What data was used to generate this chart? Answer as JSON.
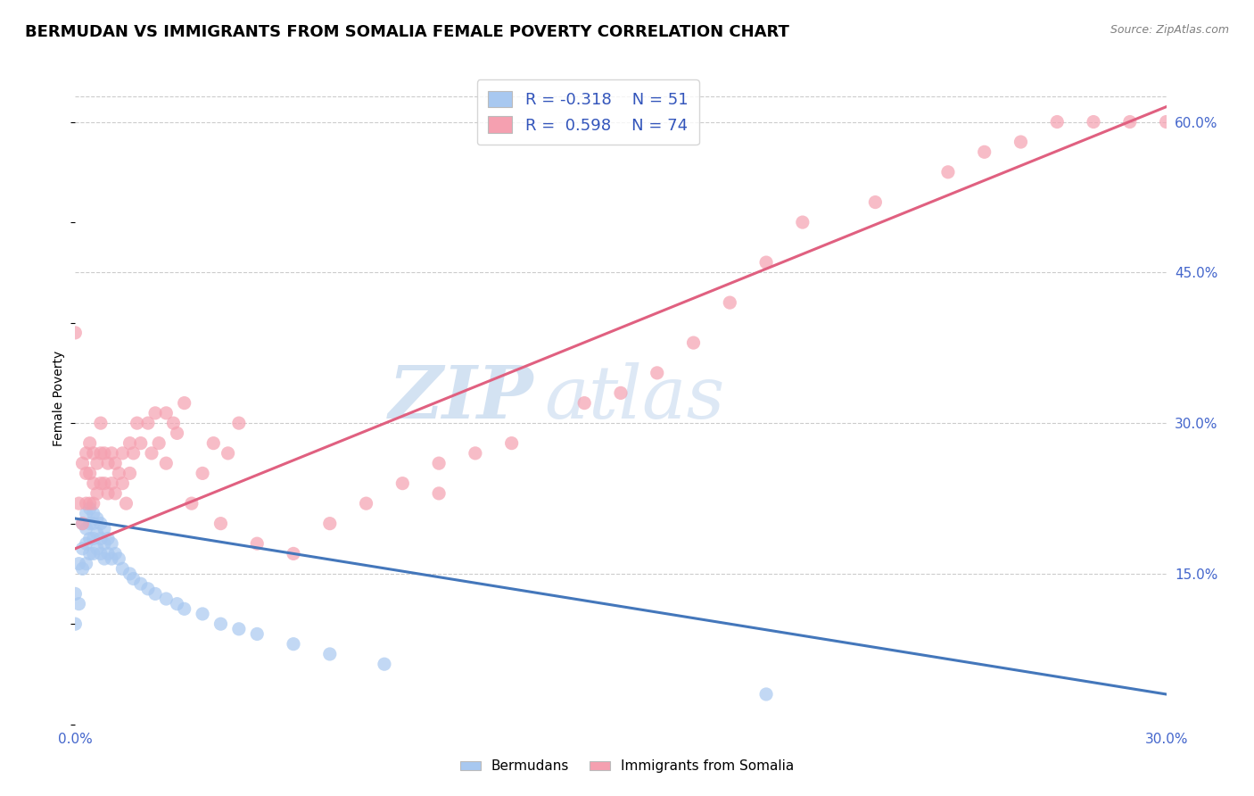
{
  "title": "BERMUDAN VS IMMIGRANTS FROM SOMALIA FEMALE POVERTY CORRELATION CHART",
  "source": "Source: ZipAtlas.com",
  "ylabel": "Female Poverty",
  "xlim": [
    0.0,
    0.3
  ],
  "ylim": [
    0.0,
    0.65
  ],
  "xticks": [
    0.0,
    0.05,
    0.1,
    0.15,
    0.2,
    0.25,
    0.3
  ],
  "xtick_labels": [
    "0.0%",
    "",
    "",
    "",
    "",
    "",
    "30.0%"
  ],
  "ytick_positions_right": [
    0.15,
    0.3,
    0.45,
    0.6
  ],
  "ytick_labels_right": [
    "15.0%",
    "30.0%",
    "45.0%",
    "60.0%"
  ],
  "bermudans_color": "#a8c8f0",
  "somalia_color": "#f5a0b0",
  "bermudans_line_color": "#4477bb",
  "somalia_line_color": "#e06080",
  "background_color": "#ffffff",
  "grid_color": "#cccccc",
  "watermark_zip": "ZIP",
  "watermark_atlas": "atlas",
  "title_fontsize": 13,
  "tick_label_color": "#4466cc",
  "legend_text_color": "#3355bb",
  "bermudans_x": [
    0.0,
    0.0,
    0.001,
    0.001,
    0.002,
    0.002,
    0.002,
    0.003,
    0.003,
    0.003,
    0.003,
    0.004,
    0.004,
    0.004,
    0.004,
    0.005,
    0.005,
    0.005,
    0.005,
    0.006,
    0.006,
    0.006,
    0.007,
    0.007,
    0.007,
    0.008,
    0.008,
    0.008,
    0.009,
    0.009,
    0.01,
    0.01,
    0.011,
    0.012,
    0.013,
    0.015,
    0.016,
    0.018,
    0.02,
    0.022,
    0.025,
    0.028,
    0.03,
    0.035,
    0.04,
    0.045,
    0.05,
    0.06,
    0.07,
    0.085,
    0.19
  ],
  "bermudans_y": [
    0.13,
    0.1,
    0.16,
    0.12,
    0.2,
    0.175,
    0.155,
    0.21,
    0.195,
    0.18,
    0.16,
    0.215,
    0.2,
    0.185,
    0.17,
    0.21,
    0.2,
    0.185,
    0.17,
    0.205,
    0.19,
    0.175,
    0.2,
    0.185,
    0.17,
    0.195,
    0.18,
    0.165,
    0.185,
    0.17,
    0.18,
    0.165,
    0.17,
    0.165,
    0.155,
    0.15,
    0.145,
    0.14,
    0.135,
    0.13,
    0.125,
    0.12,
    0.115,
    0.11,
    0.1,
    0.095,
    0.09,
    0.08,
    0.07,
    0.06,
    0.03
  ],
  "somalia_x": [
    0.0,
    0.001,
    0.002,
    0.002,
    0.003,
    0.003,
    0.003,
    0.004,
    0.004,
    0.004,
    0.005,
    0.005,
    0.005,
    0.006,
    0.006,
    0.007,
    0.007,
    0.007,
    0.008,
    0.008,
    0.009,
    0.009,
    0.01,
    0.01,
    0.011,
    0.011,
    0.012,
    0.013,
    0.013,
    0.014,
    0.015,
    0.015,
    0.016,
    0.017,
    0.018,
    0.02,
    0.021,
    0.022,
    0.023,
    0.025,
    0.025,
    0.027,
    0.028,
    0.03,
    0.032,
    0.035,
    0.038,
    0.04,
    0.042,
    0.045,
    0.05,
    0.06,
    0.07,
    0.08,
    0.09,
    0.1,
    0.1,
    0.11,
    0.12,
    0.14,
    0.15,
    0.16,
    0.17,
    0.18,
    0.19,
    0.2,
    0.22,
    0.24,
    0.25,
    0.26,
    0.27,
    0.28,
    0.29,
    0.3
  ],
  "somalia_y": [
    0.39,
    0.22,
    0.26,
    0.2,
    0.27,
    0.25,
    0.22,
    0.28,
    0.25,
    0.22,
    0.27,
    0.24,
    0.22,
    0.26,
    0.23,
    0.3,
    0.27,
    0.24,
    0.27,
    0.24,
    0.26,
    0.23,
    0.27,
    0.24,
    0.26,
    0.23,
    0.25,
    0.27,
    0.24,
    0.22,
    0.28,
    0.25,
    0.27,
    0.3,
    0.28,
    0.3,
    0.27,
    0.31,
    0.28,
    0.31,
    0.26,
    0.3,
    0.29,
    0.32,
    0.22,
    0.25,
    0.28,
    0.2,
    0.27,
    0.3,
    0.18,
    0.17,
    0.2,
    0.22,
    0.24,
    0.23,
    0.26,
    0.27,
    0.28,
    0.32,
    0.33,
    0.35,
    0.38,
    0.42,
    0.46,
    0.5,
    0.52,
    0.55,
    0.57,
    0.58,
    0.6,
    0.6,
    0.6,
    0.6
  ],
  "blue_line_x": [
    0.0,
    0.3
  ],
  "blue_line_y": [
    0.205,
    0.03
  ],
  "pink_line_x": [
    0.0,
    0.3
  ],
  "pink_line_y": [
    0.175,
    0.615
  ]
}
